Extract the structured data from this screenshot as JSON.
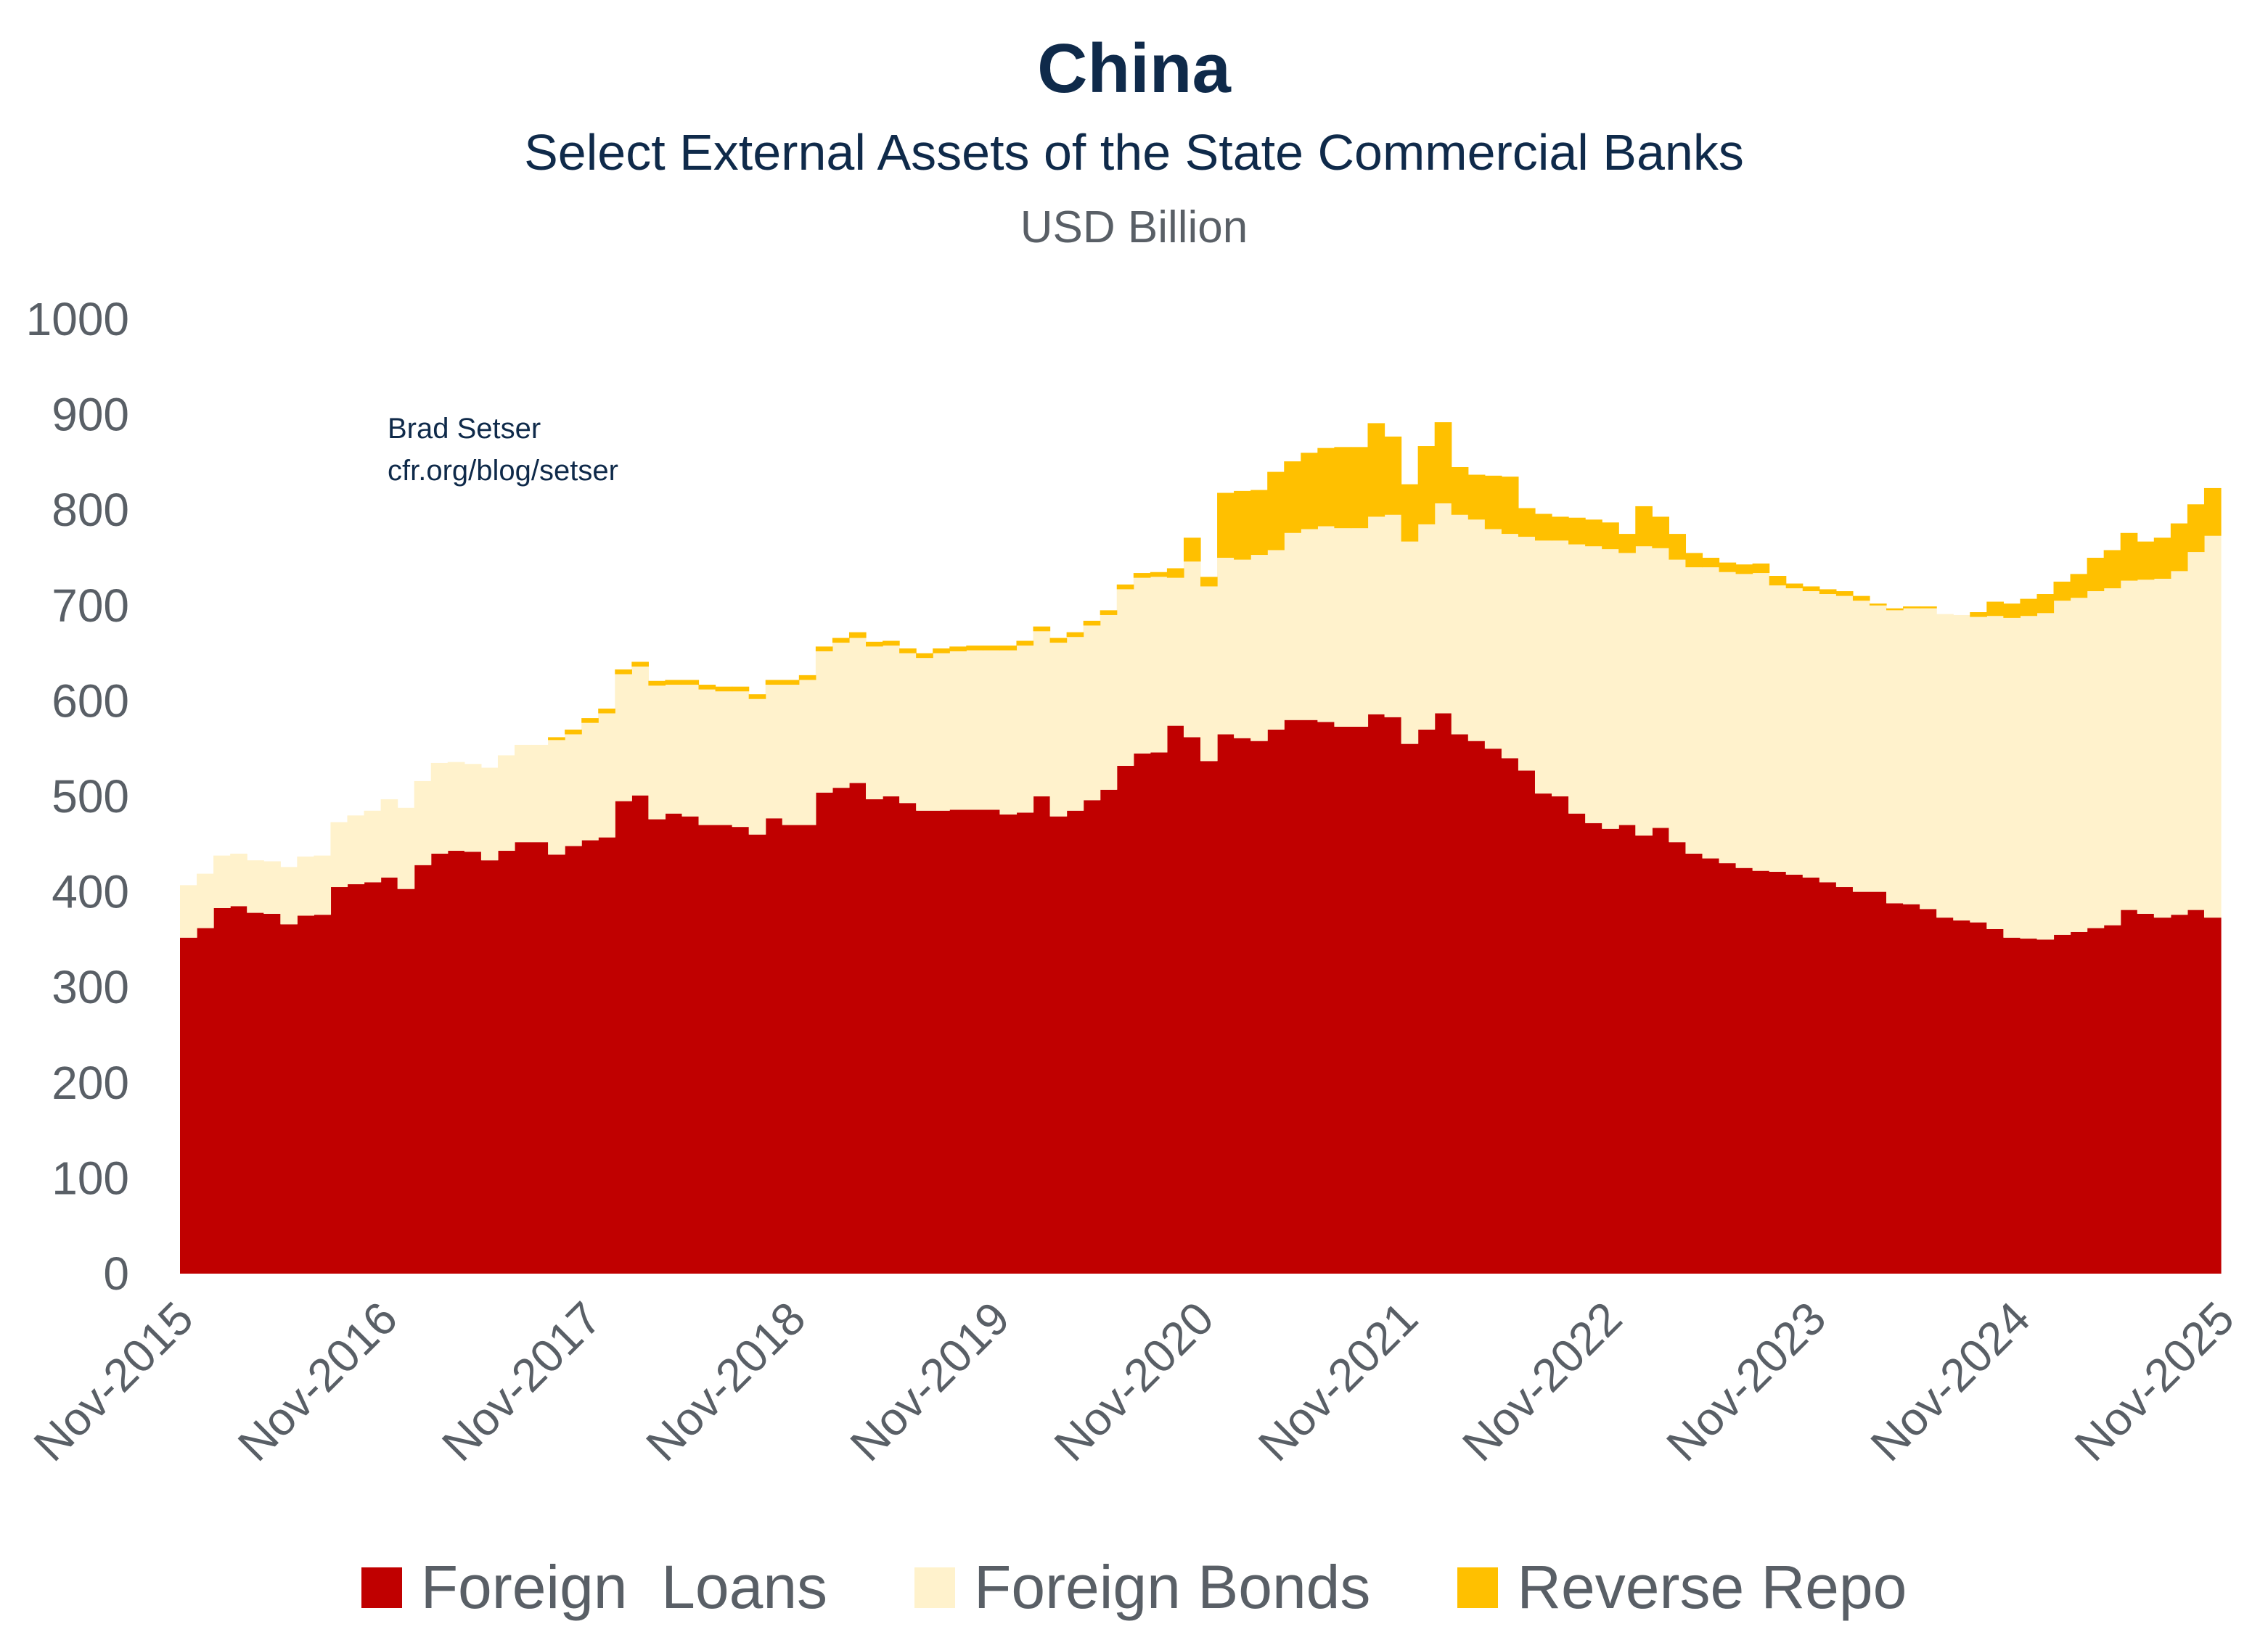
{
  "header": {
    "title": "China",
    "subtitle": "Select External Assets of the State Commercial Banks",
    "unit": "USD Billion"
  },
  "credit": {
    "line1": "Brad Setser",
    "line2": "cfr.org/blog/setser"
  },
  "colors": {
    "loans": "#c00000",
    "bonds": "#fff2cc",
    "repo": "#ffc000",
    "axis_text": "#595f66"
  },
  "chart_data": {
    "type": "area",
    "stacked": true,
    "x_start": "Nov-2015",
    "x_end": "Nov-2025",
    "x_tick_labels": [
      "Nov-2015",
      "Nov-2016",
      "Nov-2017",
      "Nov-2018",
      "Nov-2019",
      "Nov-2020",
      "Nov-2021",
      "Nov-2022",
      "Nov-2023",
      "Nov-2024",
      "Nov-2025"
    ],
    "ylim": [
      0,
      1000
    ],
    "y_ticks": [
      0,
      100,
      200,
      300,
      400,
      500,
      600,
      700,
      800,
      900,
      1000
    ],
    "grid": false,
    "legend_position": "bottom",
    "series": [
      {
        "name": "Foreign  Loans",
        "values": [
          352,
          362,
          383,
          385,
          378,
          377,
          366,
          375,
          376,
          405,
          408,
          410,
          415,
          403,
          428,
          440,
          443,
          442,
          433,
          443,
          452,
          452,
          439,
          448,
          454,
          457,
          495,
          501,
          476,
          482,
          479,
          470,
          470,
          468,
          460,
          477,
          470,
          470,
          504,
          509,
          514,
          497,
          500,
          493,
          485,
          485,
          486,
          486,
          486,
          481,
          483,
          500,
          479,
          485,
          496,
          507,
          532,
          545,
          546,
          574,
          562,
          537,
          565,
          561,
          558,
          570,
          580,
          580,
          578,
          573,
          573,
          586,
          583,
          555,
          570,
          587,
          565,
          558,
          550,
          540,
          527,
          503,
          500,
          482,
          472,
          466,
          470,
          459,
          467,
          452,
          440,
          435,
          430,
          425,
          422,
          421,
          418,
          415,
          410,
          405,
          400,
          400,
          388,
          387,
          382,
          373,
          370,
          368,
          361,
          352,
          351,
          350,
          355,
          358,
          362,
          365,
          381,
          377,
          373,
          376,
          381,
          373
        ]
      },
      {
        "name": "Foreign Bonds",
        "values": [
          55,
          57,
          55,
          55,
          55,
          55,
          60,
          62,
          62,
          68,
          72,
          75,
          82,
          85,
          88,
          95,
          93,
          92,
          97,
          100,
          102,
          102,
          120,
          117,
          123,
          130,
          133,
          135,
          140,
          135,
          138,
          142,
          140,
          142,
          142,
          140,
          147,
          152,
          148,
          152,
          152,
          160,
          158,
          157,
          160,
          165,
          166,
          167,
          167,
          172,
          175,
          173,
          182,
          182,
          183,
          183,
          185,
          184,
          184,
          155,
          184,
          183,
          185,
          187,
          195,
          188,
          196,
          200,
          205,
          208,
          208,
          207,
          212,
          212,
          215,
          220,
          230,
          232,
          230,
          235,
          245,
          265,
          268,
          282,
          290,
          293,
          285,
          303,
          293,
          296,
          300,
          305,
          305,
          308,
          312,
          300,
          300,
          300,
          302,
          305,
          305,
          300,
          307,
          310,
          315,
          318,
          320,
          320,
          328,
          335,
          338,
          342,
          350,
          350,
          353,
          353,
          345,
          350,
          355,
          360,
          375,
          400
        ]
      },
      {
        "name": "Reverse Repo",
        "values": [
          0,
          0,
          0,
          0,
          0,
          0,
          0,
          0,
          0,
          0,
          0,
          0,
          0,
          0,
          0,
          0,
          0,
          0,
          0,
          0,
          0,
          0,
          3,
          5,
          5,
          5,
          5,
          5,
          5,
          5,
          5,
          5,
          5,
          5,
          5,
          5,
          5,
          5,
          5,
          5,
          6,
          5,
          5,
          5,
          5,
          5,
          5,
          5,
          5,
          5,
          5,
          5,
          5,
          5,
          5,
          5,
          5,
          5,
          5,
          10,
          25,
          10,
          68,
          72,
          68,
          82,
          75,
          80,
          82,
          85,
          85,
          98,
          82,
          60,
          82,
          85,
          50,
          47,
          56,
          60,
          30,
          28,
          25,
          28,
          28,
          28,
          20,
          42,
          33,
          27,
          15,
          10,
          10,
          10,
          10,
          10,
          5,
          5,
          5,
          5,
          5,
          2,
          2,
          2,
          2,
          0,
          0,
          5,
          15,
          15,
          18,
          20,
          20,
          25,
          35,
          40,
          50,
          40,
          43,
          50,
          50,
          50
        ]
      }
    ]
  }
}
